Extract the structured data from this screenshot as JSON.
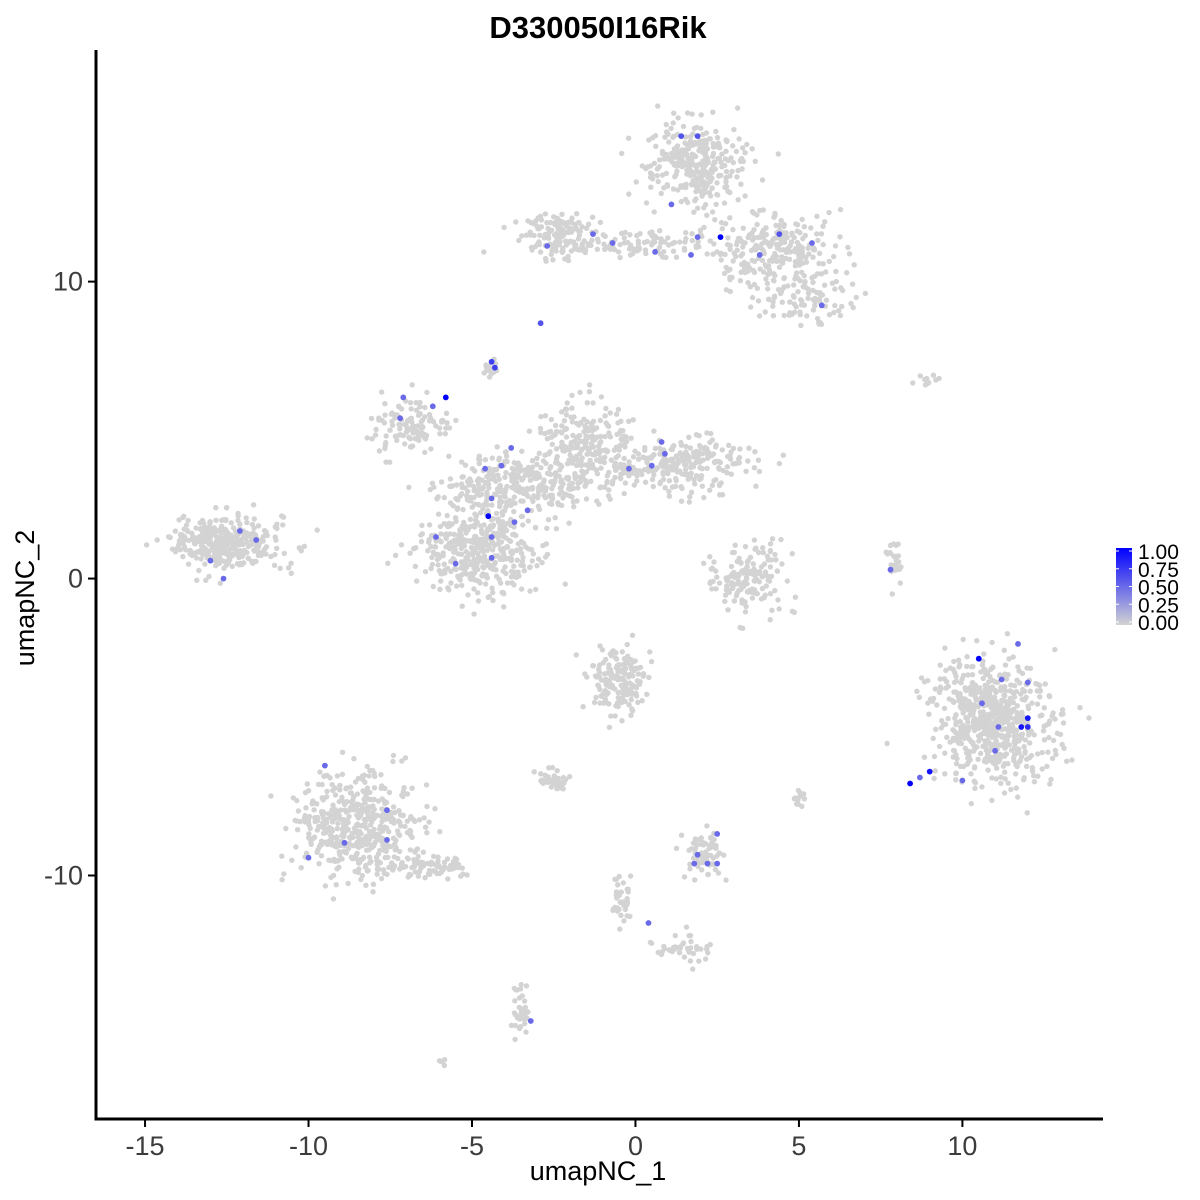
{
  "chart_data": {
    "type": "scatter",
    "title": "D330050I16Rik",
    "xlabel": "umapNC_1",
    "ylabel": "umapNC_2",
    "xlim": [
      -16.5,
      14.3
    ],
    "ylim": [
      -18.2,
      17.8
    ],
    "xticks": [
      -15,
      -10,
      -5,
      0,
      5,
      10
    ],
    "xtick_labels": [
      "-15",
      "-10",
      "-5",
      "0",
      "5",
      "10"
    ],
    "yticks": [
      -10,
      0,
      10
    ],
    "ytick_labels": [
      "-10",
      "0",
      "10"
    ],
    "grid": false,
    "legend": {
      "position": "right",
      "ticks": [
        1.0,
        0.75,
        0.5,
        0.25,
        0.0
      ],
      "labels": [
        "1.00",
        "0.75",
        "0.50",
        "0.25",
        "0.00"
      ],
      "low_color": "#d3d3d3",
      "high_color": "#0000ff"
    },
    "clusters": [
      {
        "cx": -12.5,
        "cy": 1.2,
        "sx": 1.0,
        "sy": 0.55,
        "n": 340
      },
      {
        "cx": -8.5,
        "cy": -8.3,
        "sx": 1.2,
        "sy": 1.1,
        "n": 480
      },
      {
        "cx": -6.4,
        "cy": -9.7,
        "sx": 0.8,
        "sy": 0.25,
        "n": 80
      },
      {
        "cx": -4.7,
        "cy": 1.0,
        "sx": 1.1,
        "sy": 1.0,
        "n": 420
      },
      {
        "cx": -3.4,
        "cy": 3.2,
        "sx": 1.5,
        "sy": 0.6,
        "n": 300
      },
      {
        "cx": -1.6,
        "cy": 4.6,
        "sx": 0.9,
        "sy": 0.9,
        "n": 200
      },
      {
        "cx": 1.4,
        "cy": 3.9,
        "sx": 1.3,
        "sy": 0.6,
        "n": 260
      },
      {
        "cx": -6.9,
        "cy": 5.1,
        "sx": 0.7,
        "sy": 0.6,
        "n": 110
      },
      {
        "cx": -4.4,
        "cy": 7.1,
        "sx": 0.15,
        "sy": 0.25,
        "n": 20
      },
      {
        "cx": 1.9,
        "cy": 14.0,
        "sx": 0.9,
        "sy": 0.9,
        "n": 320
      },
      {
        "cx": -2.4,
        "cy": 11.6,
        "sx": 0.6,
        "sy": 0.5,
        "n": 130
      },
      {
        "cx": 0.2,
        "cy": 11.2,
        "sx": 1.8,
        "sy": 0.3,
        "n": 110
      },
      {
        "cx": 4.3,
        "cy": 11.0,
        "sx": 1.2,
        "sy": 0.9,
        "n": 240
      },
      {
        "cx": 5.3,
        "cy": 9.4,
        "sx": 0.8,
        "sy": 0.5,
        "n": 80
      },
      {
        "cx": 3.4,
        "cy": 0.0,
        "sx": 0.8,
        "sy": 0.7,
        "n": 150
      },
      {
        "cx": 7.9,
        "cy": 0.5,
        "sx": 0.15,
        "sy": 0.5,
        "n": 25
      },
      {
        "cx": 10.9,
        "cy": -4.8,
        "sx": 1.1,
        "sy": 1.3,
        "n": 650
      },
      {
        "cx": -0.5,
        "cy": -3.5,
        "sx": 0.6,
        "sy": 0.7,
        "n": 170
      },
      {
        "cx": -2.5,
        "cy": -6.8,
        "sx": 0.3,
        "sy": 0.2,
        "n": 40
      },
      {
        "cx": 2.1,
        "cy": -9.3,
        "sx": 0.4,
        "sy": 0.5,
        "n": 70
      },
      {
        "cx": -0.4,
        "cy": -10.9,
        "sx": 0.2,
        "sy": 0.5,
        "n": 40
      },
      {
        "cx": 1.4,
        "cy": -12.5,
        "sx": 0.5,
        "sy": 0.3,
        "n": 40
      },
      {
        "cx": -3.5,
        "cy": -14.7,
        "sx": 0.2,
        "sy": 0.6,
        "n": 35
      },
      {
        "cx": 5.0,
        "cy": -7.3,
        "sx": 0.1,
        "sy": 0.2,
        "n": 12
      },
      {
        "cx": 8.9,
        "cy": 6.7,
        "sx": 0.3,
        "sy": 0.2,
        "n": 10
      },
      {
        "cx": -5.9,
        "cy": -16.3,
        "sx": 0.1,
        "sy": 0.1,
        "n": 5
      }
    ],
    "expressing_points": [
      {
        "x": 2.6,
        "y": 11.5,
        "value": 1.0
      },
      {
        "x": -5.8,
        "y": 6.1,
        "value": 1.0
      },
      {
        "x": -4.5,
        "y": 2.1,
        "value": 1.0
      },
      {
        "x": 10.5,
        "y": -2.7,
        "value": 1.0
      },
      {
        "x": 8.4,
        "y": -6.9,
        "value": 1.0
      },
      {
        "x": 9.0,
        "y": -6.5,
        "value": 0.9
      },
      {
        "x": 11.8,
        "y": -5.0,
        "value": 0.9
      },
      {
        "x": 12.0,
        "y": -4.7,
        "value": 0.9
      },
      {
        "x": 12.0,
        "y": -5.0,
        "value": 0.8
      },
      {
        "x": 1.4,
        "y": 14.9,
        "value": 0.6
      },
      {
        "x": 1.9,
        "y": 14.9,
        "value": 0.6
      },
      {
        "x": 1.1,
        "y": 12.6,
        "value": 0.5
      },
      {
        "x": -1.3,
        "y": 11.6,
        "value": 0.5
      },
      {
        "x": -0.7,
        "y": 11.3,
        "value": 0.5
      },
      {
        "x": -2.7,
        "y": 11.2,
        "value": 0.5
      },
      {
        "x": 0.6,
        "y": 11.0,
        "value": 0.5
      },
      {
        "x": 1.7,
        "y": 10.9,
        "value": 0.5
      },
      {
        "x": 1.9,
        "y": 11.5,
        "value": 0.5
      },
      {
        "x": 3.8,
        "y": 10.9,
        "value": 0.5
      },
      {
        "x": 4.4,
        "y": 11.6,
        "value": 0.6
      },
      {
        "x": 5.4,
        "y": 11.3,
        "value": 0.5
      },
      {
        "x": 5.7,
        "y": 9.2,
        "value": 0.5
      },
      {
        "x": -2.9,
        "y": 8.6,
        "value": 0.6
      },
      {
        "x": -4.4,
        "y": 7.3,
        "value": 0.7
      },
      {
        "x": -4.3,
        "y": 7.1,
        "value": 0.7
      },
      {
        "x": -7.1,
        "y": 6.1,
        "value": 0.5
      },
      {
        "x": -6.2,
        "y": 5.8,
        "value": 0.5
      },
      {
        "x": -7.2,
        "y": 5.4,
        "value": 0.5
      },
      {
        "x": -3.8,
        "y": 4.4,
        "value": 0.5
      },
      {
        "x": -4.1,
        "y": 3.8,
        "value": 0.5
      },
      {
        "x": -4.6,
        "y": 3.7,
        "value": 0.5
      },
      {
        "x": -4.4,
        "y": 2.7,
        "value": 0.5
      },
      {
        "x": -3.7,
        "y": 1.9,
        "value": 0.5
      },
      {
        "x": -3.3,
        "y": 2.3,
        "value": 0.5
      },
      {
        "x": -4.4,
        "y": 1.4,
        "value": 0.5
      },
      {
        "x": -6.1,
        "y": 1.4,
        "value": 0.5
      },
      {
        "x": -4.4,
        "y": 0.7,
        "value": 0.5
      },
      {
        "x": -5.5,
        "y": 0.5,
        "value": 0.5
      },
      {
        "x": 0.8,
        "y": 4.6,
        "value": 0.5
      },
      {
        "x": 0.9,
        "y": 4.2,
        "value": 0.5
      },
      {
        "x": 0.5,
        "y": 3.8,
        "value": 0.5
      },
      {
        "x": -0.2,
        "y": 3.7,
        "value": 0.5
      },
      {
        "x": -12.1,
        "y": 1.6,
        "value": 0.5
      },
      {
        "x": -11.6,
        "y": 1.3,
        "value": 0.5
      },
      {
        "x": -13.0,
        "y": 0.6,
        "value": 0.5
      },
      {
        "x": -12.6,
        "y": 0.0,
        "value": 0.5
      },
      {
        "x": 7.8,
        "y": 0.3,
        "value": 0.5
      },
      {
        "x": 11.7,
        "y": -2.2,
        "value": 0.5
      },
      {
        "x": 11.2,
        "y": -3.4,
        "value": 0.5
      },
      {
        "x": 12.0,
        "y": -3.5,
        "value": 0.5
      },
      {
        "x": 10.6,
        "y": -4.2,
        "value": 0.5
      },
      {
        "x": 11.1,
        "y": -5.0,
        "value": 0.5
      },
      {
        "x": 11.0,
        "y": -5.8,
        "value": 0.5
      },
      {
        "x": 10.0,
        "y": -6.8,
        "value": 0.5
      },
      {
        "x": 8.7,
        "y": -6.7,
        "value": 0.5
      },
      {
        "x": -9.5,
        "y": -6.3,
        "value": 0.5
      },
      {
        "x": -7.6,
        "y": -7.8,
        "value": 0.5
      },
      {
        "x": -8.9,
        "y": -8.9,
        "value": 0.5
      },
      {
        "x": -7.6,
        "y": -8.8,
        "value": 0.5
      },
      {
        "x": -10.0,
        "y": -9.4,
        "value": 0.5
      },
      {
        "x": 2.5,
        "y": -8.6,
        "value": 0.5
      },
      {
        "x": 1.9,
        "y": -9.3,
        "value": 0.5
      },
      {
        "x": 1.8,
        "y": -9.6,
        "value": 0.5
      },
      {
        "x": 2.2,
        "y": -9.6,
        "value": 0.5
      },
      {
        "x": 2.5,
        "y": -9.6,
        "value": 0.5
      },
      {
        "x": 0.4,
        "y": -11.6,
        "value": 0.5
      },
      {
        "x": -3.2,
        "y": -14.9,
        "value": 0.5
      }
    ]
  }
}
